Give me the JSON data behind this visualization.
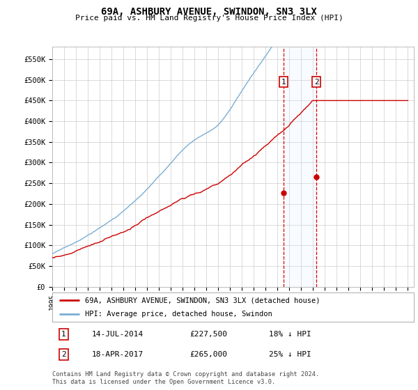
{
  "title": "69A, ASHBURY AVENUE, SWINDON, SN3 3LX",
  "subtitle": "Price paid vs. HM Land Registry's House Price Index (HPI)",
  "ylabel_ticks": [
    "£0",
    "£50K",
    "£100K",
    "£150K",
    "£200K",
    "£250K",
    "£300K",
    "£350K",
    "£400K",
    "£450K",
    "£500K",
    "£550K"
  ],
  "ytick_values": [
    0,
    50000,
    100000,
    150000,
    200000,
    250000,
    300000,
    350000,
    400000,
    450000,
    500000,
    550000
  ],
  "ylim": [
    0,
    580000
  ],
  "xlim_start": 1995.0,
  "xlim_end": 2025.5,
  "hpi_color": "#7aaed4",
  "price_color": "#cc0000",
  "shade_color": "#ddeeff",
  "transaction1_x": 2014.53,
  "transaction1_y": 227500,
  "transaction2_x": 2017.29,
  "transaction2_y": 265000,
  "legend_line1": "69A, ASHBURY AVENUE, SWINDON, SN3 3LX (detached house)",
  "legend_line2": "HPI: Average price, detached house, Swindon",
  "note1_date": "14-JUL-2014",
  "note1_price": "£227,500",
  "note1_hpi": "18% ↓ HPI",
  "note2_date": "18-APR-2017",
  "note2_price": "£265,000",
  "note2_hpi": "25% ↓ HPI",
  "footer": "Contains HM Land Registry data © Crown copyright and database right 2024.\nThis data is licensed under the Open Government Licence v3.0.",
  "background_color": "#ffffff",
  "grid_color": "#cccccc"
}
